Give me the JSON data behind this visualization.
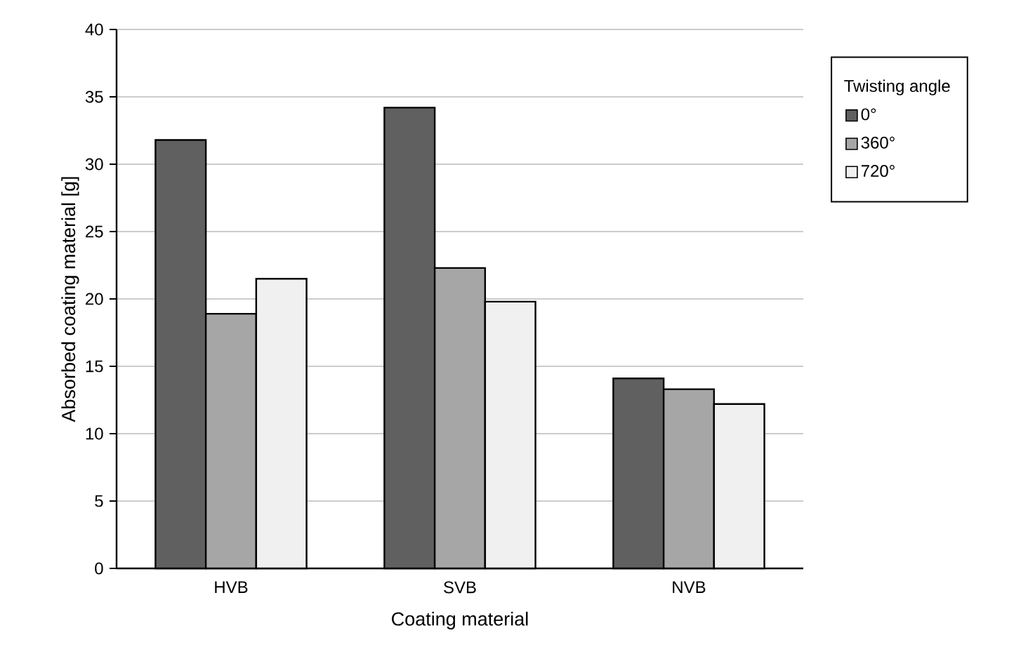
{
  "chart_data": {
    "type": "bar",
    "xlabel": "Coating material",
    "ylabel": "Absorbed coating material [g]",
    "legend_title": "Twisting angle",
    "categories": [
      "HVB",
      "SVB",
      "NVB"
    ],
    "series": [
      {
        "name": "0°",
        "color": "#606060",
        "values": [
          31.8,
          34.2,
          14.1
        ]
      },
      {
        "name": "360°",
        "color": "#a6a6a6",
        "values": [
          18.9,
          22.3,
          13.3
        ]
      },
      {
        "name": "720°",
        "color": "#f0f0f0",
        "values": [
          21.5,
          19.8,
          12.2
        ]
      }
    ],
    "ylim": [
      0,
      40
    ],
    "yticks": [
      0,
      5,
      10,
      15,
      20,
      25,
      30,
      35,
      40
    ],
    "grid": "y",
    "legend": "right"
  }
}
